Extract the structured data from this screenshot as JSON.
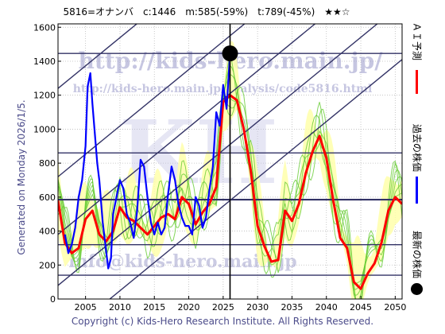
{
  "header": {
    "title": "5816=オナンバ　c:1446　m:585(-59%)　t:789(-45%)　★★☆"
  },
  "side_label": "Generated on Monday 2026/1/5.",
  "footer": "Copyright (c) Kids-Hero Research Institute. All Rights Reserved.",
  "watermarks": {
    "url": "http://kids-hero.main.jp/",
    "analysis_url": "http://kids-hero.main.jp/analysis/code5816.html",
    "email": "info@kids-hero.main.jp"
  },
  "legend": [
    {
      "label": "ＡＩ予測",
      "color": "#ff0000"
    },
    {
      "label": "過去の株価",
      "color": "#0000ff"
    },
    {
      "label": "最新の株価",
      "color": "#000000"
    }
  ],
  "colors": {
    "ai_forecast": "#ff0000",
    "past_price": "#0000ff",
    "latest_marker": "#000000",
    "band_fill": "#ffffaa",
    "band_green": "#66cc33",
    "channel_lines": "#333366"
  },
  "chart_data": {
    "type": "line",
    "xlim": [
      2001,
      2051
    ],
    "ylim": [
      0,
      1620
    ],
    "x_ticks": [
      2005,
      2010,
      2015,
      2020,
      2025,
      2030,
      2035,
      2040,
      2045,
      2050
    ],
    "y_ticks": [
      0,
      200,
      400,
      600,
      800,
      1000,
      1200,
      1400,
      1600
    ],
    "grid": true,
    "current_date_x": 2026.0,
    "latest_price": {
      "x": 2026.0,
      "y": 1446
    },
    "horizontal_levels": [
      1446,
      860,
      585,
      320,
      140
    ],
    "channel_lines": [
      {
        "x": [
          2001,
          2051
        ],
        "y": [
          1240,
          2900
        ]
      },
      {
        "x": [
          2001,
          2051
        ],
        "y": [
          720,
          2380
        ]
      },
      {
        "x": [
          2001,
          2051
        ],
        "y": [
          380,
          2040
        ]
      },
      {
        "x": [
          2001,
          2051
        ],
        "y": [
          80,
          1740
        ]
      },
      {
        "x": [
          2001,
          2051
        ],
        "y": [
          -250,
          1410
        ]
      }
    ],
    "series": [
      {
        "name": "過去の株価",
        "x": [
          2002.0,
          2002.5,
          2003.0,
          2003.5,
          2004.0,
          2004.5,
          2005.0,
          2005.3,
          2005.7,
          2006.0,
          2006.3,
          2006.7,
          2007.0,
          2007.5,
          2008.0,
          2008.3,
          2008.7,
          2009.0,
          2009.5,
          2010.0,
          2010.5,
          2011.0,
          2011.5,
          2012.0,
          2012.5,
          2013.0,
          2013.5,
          2014.0,
          2014.5,
          2015.0,
          2015.5,
          2016.0,
          2016.5,
          2017.0,
          2017.5,
          2018.0,
          2018.5,
          2019.0,
          2019.5,
          2020.0,
          2020.5,
          2021.0,
          2021.5,
          2022.0,
          2022.5,
          2023.0,
          2023.5,
          2024.0,
          2024.5,
          2025.0,
          2025.5,
          2026.0
        ],
        "y": [
          380,
          270,
          320,
          420,
          600,
          700,
          900,
          1250,
          1330,
          1150,
          1000,
          800,
          700,
          450,
          280,
          180,
          240,
          500,
          600,
          700,
          650,
          500,
          450,
          360,
          520,
          820,
          780,
          600,
          450,
          380,
          450,
          380,
          420,
          620,
          780,
          700,
          560,
          480,
          430,
          430,
          380,
          600,
          550,
          420,
          480,
          640,
          780,
          1100,
          1020,
          1260,
          1120,
          1446
        ]
      },
      {
        "name": "ＡＩ予測",
        "x": [
          2001,
          2002,
          2003,
          2004,
          2005,
          2006,
          2007,
          2008,
          2009,
          2010,
          2011,
          2012,
          2013,
          2014,
          2015,
          2016,
          2017,
          2018,
          2019,
          2020,
          2021,
          2022,
          2023,
          2024,
          2025,
          2026,
          2027,
          2028,
          2029,
          2030,
          2031,
          2032,
          2033,
          2034,
          2035,
          2036,
          2037,
          2038,
          2039,
          2040,
          2041,
          2042,
          2043,
          2044,
          2045,
          2046,
          2047,
          2048,
          2049,
          2050,
          2051
        ],
        "y": [
          580,
          330,
          270,
          300,
          470,
          520,
          380,
          340,
          400,
          540,
          480,
          460,
          420,
          380,
          430,
          480,
          500,
          470,
          600,
          560,
          440,
          510,
          560,
          660,
          1160,
          1200,
          1170,
          1000,
          760,
          430,
          310,
          220,
          230,
          520,
          460,
          560,
          740,
          870,
          960,
          830,
          580,
          360,
          300,
          100,
          60,
          150,
          210,
          330,
          520,
          600,
          560
        ]
      }
    ]
  }
}
